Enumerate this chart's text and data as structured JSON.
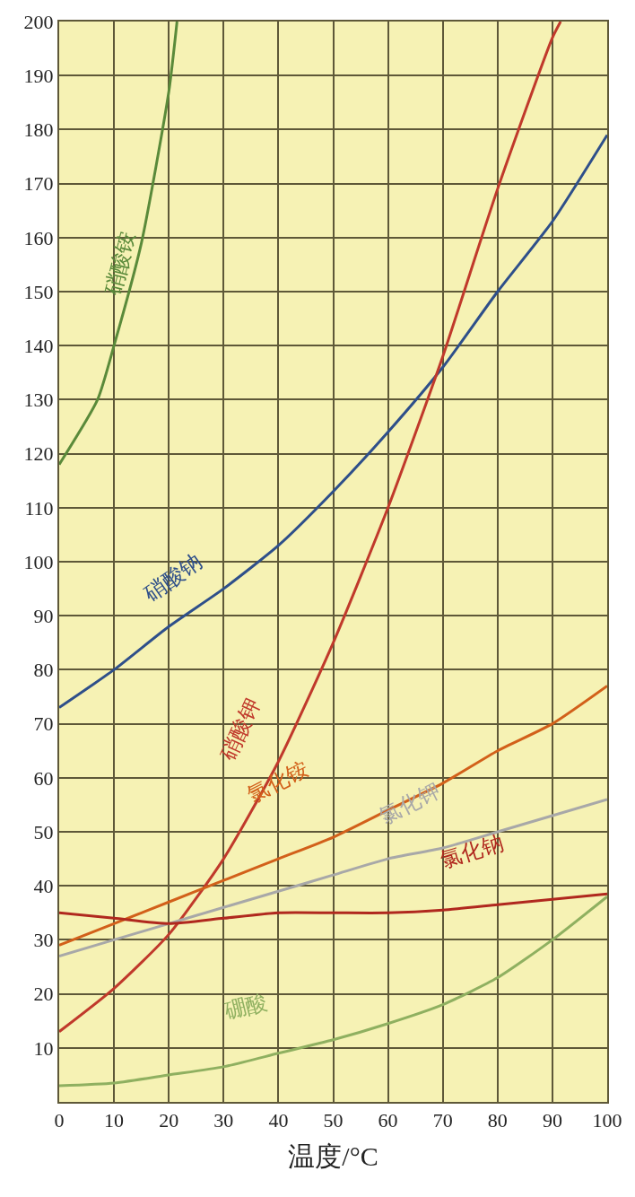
{
  "chart_data": {
    "type": "line",
    "xlabel": "温度/°C",
    "xlim": [
      0,
      100
    ],
    "xticks": [
      0,
      10,
      20,
      30,
      40,
      50,
      60,
      70,
      80,
      90,
      100
    ],
    "ylim": [
      0,
      200
    ],
    "yticks": [
      10,
      20,
      30,
      40,
      50,
      60,
      70,
      80,
      90,
      100,
      110,
      120,
      130,
      140,
      150,
      160,
      170,
      180,
      190,
      200
    ],
    "grid": true,
    "legend": false,
    "marker": "none",
    "line_style": "solid",
    "series": [
      {
        "name": "硝酸铵",
        "color": "#5a8a3a",
        "x": [
          0,
          7,
          10,
          15,
          20,
          21.5
        ],
        "values": [
          118,
          130,
          140,
          159,
          187,
          200
        ]
      },
      {
        "name": "硝酸钠",
        "color": "#2e4f8a",
        "x": [
          0,
          10,
          20,
          30,
          40,
          50,
          60,
          70,
          80,
          90,
          100
        ],
        "values": [
          73,
          80,
          88,
          95,
          103,
          113,
          124,
          136,
          150,
          163,
          179
        ]
      },
      {
        "name": "硝酸钾",
        "color": "#c0392b",
        "x": [
          0,
          10,
          20,
          30,
          40,
          50,
          60,
          70,
          80,
          90,
          91.5
        ],
        "values": [
          13,
          21,
          31,
          45,
          63,
          85,
          110,
          138,
          169,
          197,
          200
        ]
      },
      {
        "name": "氯化铵",
        "color": "#d2601a",
        "x": [
          0,
          10,
          20,
          30,
          40,
          50,
          60,
          70,
          80,
          90,
          100
        ],
        "values": [
          29,
          33,
          37,
          41,
          45,
          49,
          54,
          59,
          65,
          70,
          77
        ]
      },
      {
        "name": "氯化钾",
        "color": "#a8a8a8",
        "x": [
          0,
          10,
          20,
          30,
          40,
          50,
          60,
          70,
          80,
          90,
          100
        ],
        "values": [
          27,
          30,
          33,
          36,
          39,
          42,
          45,
          47,
          50,
          53,
          56
        ]
      },
      {
        "name": "氯化钠",
        "color": "#b0281e",
        "x": [
          0,
          10,
          20,
          30,
          40,
          50,
          60,
          70,
          80,
          90,
          100
        ],
        "values": [
          35,
          34,
          33,
          34,
          35,
          35,
          35,
          35.5,
          36.5,
          37.5,
          38.5
        ]
      },
      {
        "name": "硼酸",
        "color": "#8fb060",
        "x": [
          0,
          10,
          20,
          30,
          40,
          50,
          60,
          70,
          80,
          90,
          100
        ],
        "values": [
          3,
          3.5,
          5,
          6.5,
          9,
          11.5,
          14.5,
          18,
          23,
          30,
          38
        ]
      }
    ]
  }
}
